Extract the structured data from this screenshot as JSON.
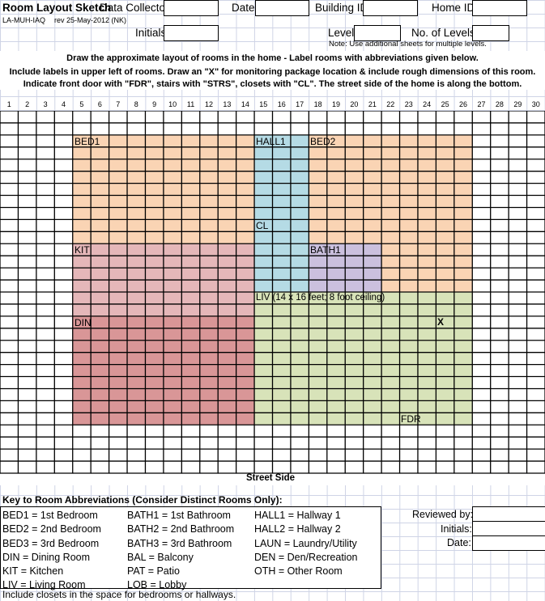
{
  "header": {
    "title": "Room Layout Sketch",
    "form_id": "LA-MUH-IAQ",
    "revision": "rev 25-May-2012 (NK)",
    "data_collector_label": "Data Collector",
    "data_collector_value": "",
    "date_label": "Date",
    "date_value": "",
    "building_id_label": "Building ID",
    "building_id_value": "",
    "home_id_label": "Home ID",
    "home_id_value": "",
    "initials_label": "Initials",
    "initials_value": "",
    "level_label": "Level #:",
    "level_value": "",
    "levels_label": "No. of Levels:",
    "levels_value": "",
    "note": "Note:  Use additional sheets for multiple levels."
  },
  "instructions": [
    "Draw the approximate layout of rooms in the home - Label rooms with abbreviations given below.",
    "Include labels in upper left of rooms.    Draw an \"X\" for monitoring package location & include rough dimensions of this room.",
    "Indicate front door with \"FDR\", stairs with \"STRS\", closets with \"CL\".  The street side of the home is along the bottom."
  ],
  "column_numbers": [
    "1",
    "2",
    "3",
    "4",
    "5",
    "6",
    "7",
    "8",
    "9",
    "10",
    "11",
    "12",
    "13",
    "14",
    "15",
    "16",
    "17",
    "18",
    "19",
    "20",
    "21",
    "22",
    "23",
    "24",
    "25",
    "26",
    "27",
    "28",
    "29",
    "30"
  ],
  "rooms": {
    "bed1": {
      "label": "BED1",
      "color": "#fad4b4"
    },
    "hall1": {
      "label": "HALL1",
      "color": "#b5dbe5"
    },
    "bed2": {
      "label": "BED2",
      "color": "#fad4b4"
    },
    "closet": {
      "label": "CL"
    },
    "kit": {
      "label": "KIT",
      "color": "#e5b7b9"
    },
    "bath1": {
      "label": "BATH1",
      "color": "#cbc0de"
    },
    "liv": {
      "label": "LIV (14 x 16 feet; 8 foot ceiling)",
      "color": "#d8e3b9"
    },
    "din": {
      "label": "DIN",
      "color": "#d99697"
    },
    "monitor": {
      "label": "X"
    },
    "front_door": {
      "label": "FDR"
    }
  },
  "street_side": "Street Side",
  "key": {
    "title": "Key to Room Abbreviations (Consider Distinct Rooms Only):",
    "col1": [
      "BED1 = 1st Bedroom",
      "BED2 = 2nd Bedroom",
      "BED3 = 3rd Bedroom",
      "DIN = Dining Room",
      "KIT = Kitchen",
      "LIV = Living Room"
    ],
    "col2": [
      "BATH1 = 1st Bathroom",
      "BATH2 = 2nd Bathroom",
      "BATH3 = 3rd Bathroom",
      "BAL = Balcony",
      "PAT = Patio",
      "LOB = Lobby"
    ],
    "col3": [
      "HALL1 = Hallway 1",
      "HALL2 = Hallway 2",
      "LAUN = Laundry/Utility",
      "DEN = Den/Recreation",
      "OTH = Other Room"
    ],
    "footnote": "Include closets in the space for bedrooms or hallways."
  },
  "review": {
    "reviewed_by_label": "Reviewed by:",
    "initials_label": "Initials:",
    "date_label": "Date:"
  }
}
